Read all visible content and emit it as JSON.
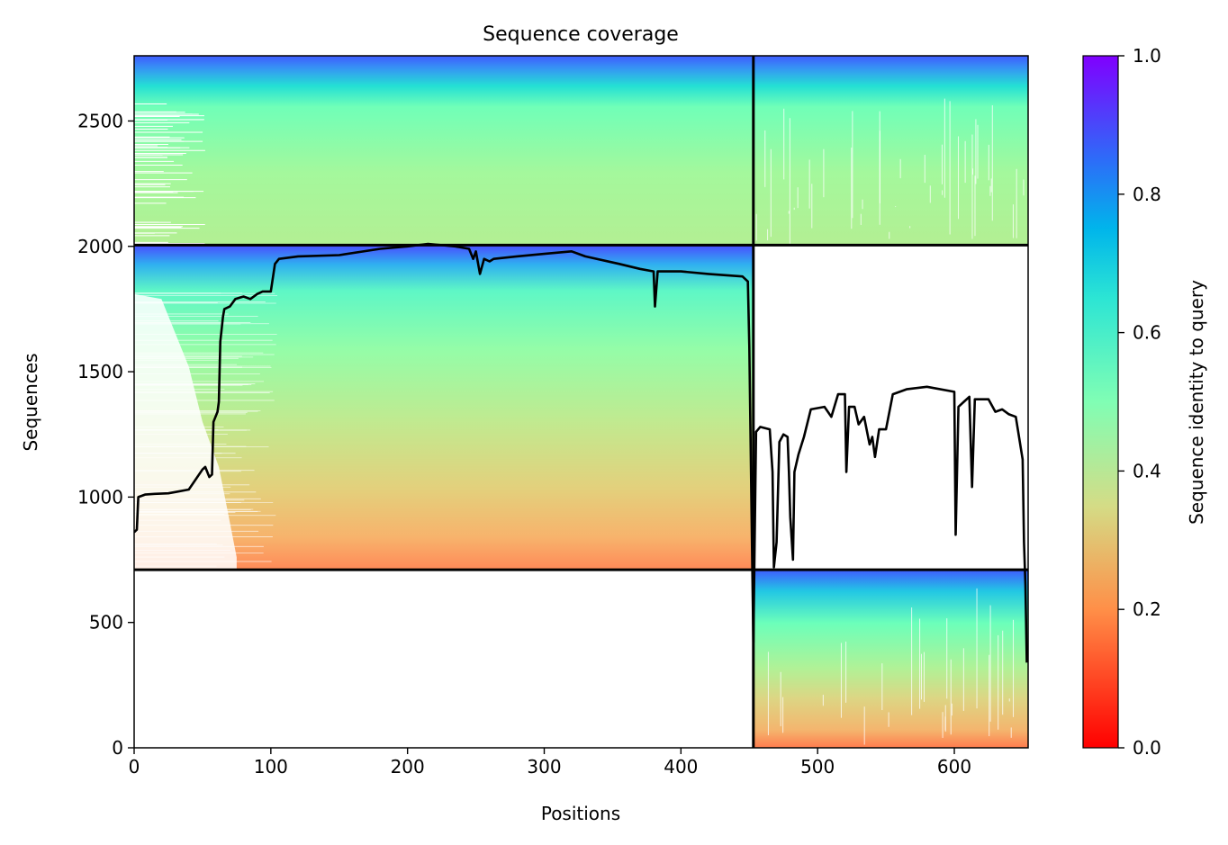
{
  "chart_data": {
    "type": "heatmap",
    "title": "Sequence coverage",
    "xlabel": "Positions",
    "ylabel": "Sequences",
    "xlim": [
      0,
      654
    ],
    "ylim": [
      0,
      2760
    ],
    "x_ticks": [
      0,
      100,
      200,
      300,
      400,
      500,
      600
    ],
    "y_ticks": [
      0,
      500,
      1000,
      1500,
      2000,
      2500
    ],
    "colorbar": {
      "label": "Sequence identity to query",
      "range": [
        0.0,
        1.0
      ],
      "ticks": [
        0.0,
        0.2,
        0.4,
        0.6,
        0.8,
        1.0
      ],
      "tick_labels": [
        "0.0",
        "0.2",
        "0.4",
        "0.6",
        "0.8",
        "1.0"
      ],
      "colormap": "rainbow_r"
    },
    "blocks": [
      {
        "x_range": [
          0,
          453
        ],
        "y_range": [
          2005,
          2760
        ],
        "identity_top": 0.95,
        "identity_bottom": 0.4
      },
      {
        "x_range": [
          453,
          654
        ],
        "y_range": [
          2005,
          2760
        ],
        "identity_top": 0.95,
        "identity_bottom": 0.4
      },
      {
        "x_range": [
          0,
          453
        ],
        "y_range": [
          710,
          2005
        ],
        "identity_top": 0.95,
        "identity_bottom": 0.2
      },
      {
        "x_range": [
          453,
          654
        ],
        "y_range": [
          0,
          710
        ],
        "identity_top": 0.95,
        "identity_bottom": 0.2
      }
    ],
    "block_dividers": {
      "x": [
        453
      ],
      "y": [
        710,
        2005
      ]
    },
    "coverage_line": {
      "name": "",
      "color": "#000000",
      "points": [
        [
          0,
          860
        ],
        [
          2,
          870
        ],
        [
          3,
          1000
        ],
        [
          8,
          1010
        ],
        [
          15,
          1013
        ],
        [
          25,
          1015
        ],
        [
          30,
          1020
        ],
        [
          40,
          1030
        ],
        [
          45,
          1070
        ],
        [
          50,
          1110
        ],
        [
          52,
          1120
        ],
        [
          55,
          1080
        ],
        [
          57,
          1090
        ],
        [
          58,
          1300
        ],
        [
          61,
          1340
        ],
        [
          62,
          1380
        ],
        [
          63,
          1620
        ],
        [
          65,
          1720
        ],
        [
          66,
          1750
        ],
        [
          70,
          1760
        ],
        [
          74,
          1790
        ],
        [
          80,
          1800
        ],
        [
          85,
          1790
        ],
        [
          90,
          1810
        ],
        [
          94,
          1820
        ],
        [
          100,
          1820
        ],
        [
          103,
          1930
        ],
        [
          106,
          1950
        ],
        [
          120,
          1960
        ],
        [
          150,
          1965
        ],
        [
          180,
          1990
        ],
        [
          200,
          2000
        ],
        [
          215,
          2010
        ],
        [
          235,
          2000
        ],
        [
          245,
          1990
        ],
        [
          248,
          1950
        ],
        [
          250,
          1980
        ],
        [
          253,
          1890
        ],
        [
          256,
          1950
        ],
        [
          260,
          1940
        ],
        [
          263,
          1950
        ],
        [
          280,
          1960
        ],
        [
          300,
          1970
        ],
        [
          320,
          1980
        ],
        [
          330,
          1960
        ],
        [
          355,
          1930
        ],
        [
          370,
          1910
        ],
        [
          380,
          1900
        ],
        [
          381,
          1760
        ],
        [
          383,
          1900
        ],
        [
          400,
          1900
        ],
        [
          420,
          1890
        ],
        [
          445,
          1880
        ],
        [
          449,
          1860
        ],
        [
          450,
          1600
        ],
        [
          451,
          1200
        ],
        [
          452,
          800
        ],
        [
          453,
          420
        ],
        [
          455,
          1260
        ],
        [
          458,
          1280
        ],
        [
          465,
          1270
        ],
        [
          467,
          1100
        ],
        [
          468,
          720
        ],
        [
          470,
          820
        ],
        [
          472,
          1220
        ],
        [
          475,
          1250
        ],
        [
          478,
          1240
        ],
        [
          479,
          1100
        ],
        [
          480,
          920
        ],
        [
          482,
          750
        ],
        [
          483,
          1100
        ],
        [
          486,
          1170
        ],
        [
          490,
          1240
        ],
        [
          495,
          1350
        ],
        [
          505,
          1360
        ],
        [
          510,
          1320
        ],
        [
          515,
          1410
        ],
        [
          520,
          1410
        ],
        [
          521,
          1100
        ],
        [
          523,
          1360
        ],
        [
          527,
          1360
        ],
        [
          530,
          1290
        ],
        [
          534,
          1320
        ],
        [
          538,
          1210
        ],
        [
          540,
          1240
        ],
        [
          542,
          1160
        ],
        [
          545,
          1270
        ],
        [
          550,
          1270
        ],
        [
          555,
          1410
        ],
        [
          565,
          1430
        ],
        [
          580,
          1440
        ],
        [
          600,
          1420
        ],
        [
          601,
          850
        ],
        [
          603,
          1360
        ],
        [
          607,
          1380
        ],
        [
          611,
          1400
        ],
        [
          613,
          1040
        ],
        [
          615,
          1390
        ],
        [
          625,
          1390
        ],
        [
          630,
          1340
        ],
        [
          635,
          1350
        ],
        [
          640,
          1330
        ],
        [
          645,
          1320
        ],
        [
          650,
          1150
        ],
        [
          651,
          820
        ],
        [
          652,
          650
        ],
        [
          653,
          340
        ]
      ]
    }
  }
}
